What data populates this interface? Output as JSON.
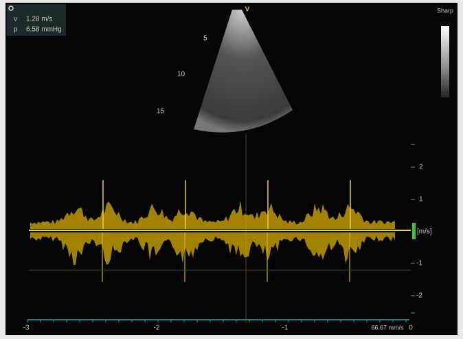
{
  "header": {
    "preset": "Sharp",
    "marker": "V"
  },
  "measurements": {
    "rows": [
      {
        "label": "v",
        "value": "1.28 m/s"
      },
      {
        "label": "p",
        "value": "6.58 mmHg"
      }
    ]
  },
  "depth_scale": {
    "labels": [
      "5",
      "10",
      "15"
    ]
  },
  "velocity_scale": {
    "unit": "[m/s]",
    "ticks": [
      "2",
      "1",
      "-1",
      "-2"
    ]
  },
  "time_axis": {
    "ticks": [
      "-3",
      "-2",
      "-1",
      "0"
    ],
    "sweep_speed": "66.67 mm/s"
  }
}
